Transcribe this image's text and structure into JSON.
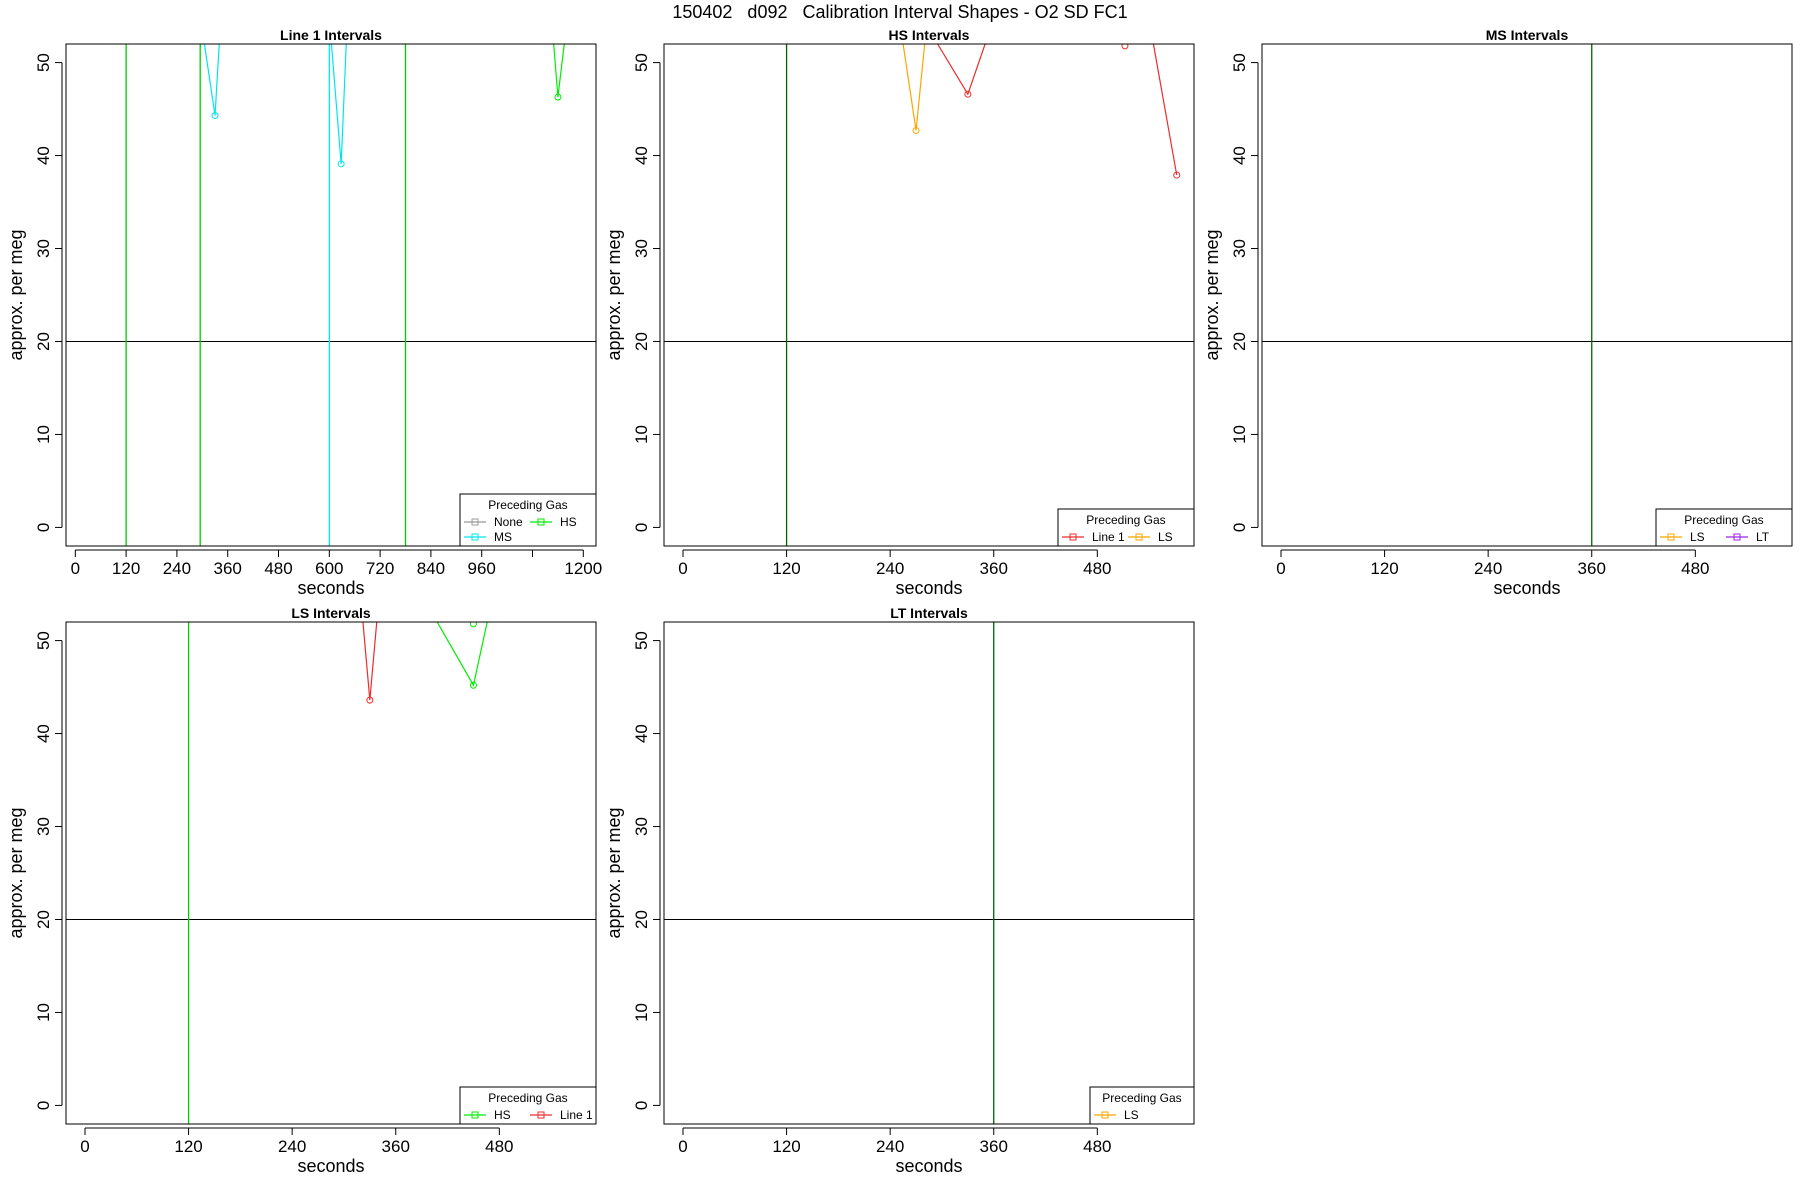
{
  "page": {
    "title": "150402   d092   Calibration Interval Shapes - O2 SD FC1"
  },
  "chart_data": [
    {
      "type": "line",
      "title": "Line 1 Intervals",
      "xlabel": "seconds",
      "ylabel": "approx. per meg",
      "xlim": [
        -22,
        1230
      ],
      "ylim": [
        -2,
        52
      ],
      "xticks": [
        0,
        120,
        240,
        360,
        480,
        600,
        720,
        840,
        960,
        1080,
        1200
      ],
      "xticklabels": [
        "0",
        "120",
        "240",
        "360",
        "480",
        "600",
        "720",
        "840",
        "960",
        "",
        "1200"
      ],
      "yticks": [
        0,
        10,
        20,
        30,
        40,
        50
      ],
      "hlines": [
        20
      ],
      "vlines": [
        {
          "x": 120,
          "color": "#00cd00"
        },
        {
          "x": 295,
          "color": "#00cd00"
        },
        {
          "x": 600,
          "color": "#00e5ee"
        },
        {
          "x": 780,
          "color": "#00cd00"
        }
      ],
      "legend": {
        "title": "Preceding Gas",
        "position": "bottom-right",
        "columns": 2,
        "entries": [
          {
            "name": "None",
            "color": "#999999"
          },
          {
            "name": "HS",
            "color": "#00ee00"
          },
          {
            "name": "MS",
            "color": "#00e5ee"
          }
        ]
      },
      "series": [
        {
          "name": "MS",
          "color": "#00e5ee",
          "x": [
            305,
            330,
            340
          ],
          "y": [
            52,
            44.3,
            52
          ]
        },
        {
          "name": "MS",
          "color": "#00e5ee",
          "x": [
            605,
            628,
            640
          ],
          "y": [
            52,
            39.1,
            52
          ]
        },
        {
          "name": "HS",
          "color": "#00ee00",
          "x": [
            1130,
            1140,
            1155
          ],
          "y": [
            52,
            46.3,
            52
          ]
        }
      ]
    },
    {
      "type": "line",
      "title": "HS Intervals",
      "xlabel": "seconds",
      "ylabel": "approx. per meg",
      "xlim": [
        -22,
        592
      ],
      "ylim": [
        -2,
        52
      ],
      "xticks": [
        0,
        120,
        240,
        360,
        480
      ],
      "xticklabels": [
        "0",
        "120",
        "240",
        "360",
        "480"
      ],
      "yticks": [
        0,
        10,
        20,
        30,
        40,
        50
      ],
      "hlines": [
        20
      ],
      "vlines": [
        {
          "x": 120,
          "color": "#006400"
        }
      ],
      "legend": {
        "title": "Preceding Gas",
        "position": "bottom-right",
        "columns": 2,
        "entries": [
          {
            "name": "Line 1",
            "color": "#ee2c2c"
          },
          {
            "name": "LS",
            "color": "#ffa500"
          }
        ]
      },
      "series": [
        {
          "name": "LS",
          "color": "#ffa500",
          "x": [
            255,
            270,
            280
          ],
          "y": [
            52,
            42.7,
            52
          ]
        },
        {
          "name": "Line 1",
          "color": "#ee2c2c",
          "x": [
            295,
            330,
            350
          ],
          "y": [
            52,
            46.6,
            52
          ]
        },
        {
          "name": "Line 1",
          "color": "#ee2c2c",
          "x": [
            512
          ],
          "y": [
            51.8
          ]
        },
        {
          "name": "Line 1",
          "color": "#ee2c2c",
          "x": [
            545,
            572
          ],
          "y": [
            52,
            37.9
          ]
        }
      ]
    },
    {
      "type": "line",
      "title": "MS Intervals",
      "xlabel": "seconds",
      "ylabel": "approx. per meg",
      "xlim": [
        -22,
        592
      ],
      "ylim": [
        -2,
        52
      ],
      "xticks": [
        0,
        120,
        240,
        360,
        480
      ],
      "xticklabels": [
        "0",
        "120",
        "240",
        "360",
        "480"
      ],
      "yticks": [
        0,
        10,
        20,
        30,
        40,
        50
      ],
      "hlines": [
        20
      ],
      "vlines": [
        {
          "x": 360,
          "color": "#006400"
        }
      ],
      "legend": {
        "title": "Preceding Gas",
        "position": "bottom-right",
        "columns": 2,
        "entries": [
          {
            "name": "LS",
            "color": "#ffa500"
          },
          {
            "name": "LT",
            "color": "#a020f0"
          }
        ]
      },
      "series": []
    },
    {
      "type": "line",
      "title": "LS Intervals",
      "xlabel": "seconds",
      "ylabel": "approx. per meg",
      "xlim": [
        -22,
        592
      ],
      "ylim": [
        -2,
        52
      ],
      "xticks": [
        0,
        120,
        240,
        360,
        480
      ],
      "xticklabels": [
        "0",
        "120",
        "240",
        "360",
        "480"
      ],
      "yticks": [
        0,
        10,
        20,
        30,
        40,
        50
      ],
      "hlines": [
        20
      ],
      "vlines": [
        {
          "x": 120,
          "color": "#00cd00"
        }
      ],
      "legend": {
        "title": "Preceding Gas",
        "position": "bottom-right",
        "columns": 2,
        "entries": [
          {
            "name": "HS",
            "color": "#00ee00"
          },
          {
            "name": "Line 1",
            "color": "#ee2c2c"
          }
        ]
      },
      "series": [
        {
          "name": "Line 1",
          "color": "#ee2c2c",
          "x": [
            322,
            330,
            338
          ],
          "y": [
            52,
            43.6,
            52
          ]
        },
        {
          "name": "HS",
          "color": "#00ee00",
          "x": [
            408,
            450,
            466
          ],
          "y": [
            52,
            45.2,
            52
          ]
        },
        {
          "name": "HS",
          "color": "#00ee00",
          "x": [
            450
          ],
          "y": [
            51.8
          ]
        }
      ]
    },
    {
      "type": "line",
      "title": "LT Intervals",
      "xlabel": "seconds",
      "ylabel": "approx. per meg",
      "xlim": [
        -22,
        592
      ],
      "ylim": [
        -2,
        52
      ],
      "xticks": [
        0,
        120,
        240,
        360,
        480
      ],
      "xticklabels": [
        "0",
        "120",
        "240",
        "360",
        "480"
      ],
      "yticks": [
        0,
        10,
        20,
        30,
        40,
        50
      ],
      "hlines": [
        20
      ],
      "vlines": [
        {
          "x": 360,
          "color": "#006400"
        }
      ],
      "legend": {
        "title": "Preceding Gas",
        "position": "bottom-right",
        "columns": 1,
        "entries": [
          {
            "name": "LS",
            "color": "#ffa500"
          }
        ]
      },
      "series": []
    }
  ]
}
